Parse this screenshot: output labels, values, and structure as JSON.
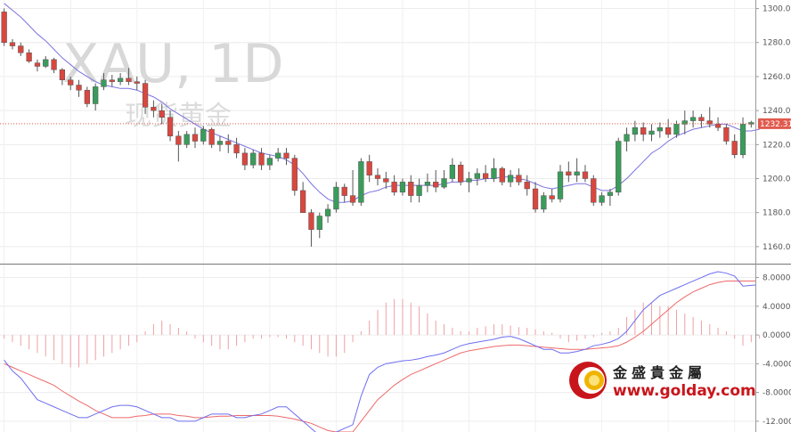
{
  "watermark": {
    "symbol": "XAU, 1D",
    "name": "现货黄金"
  },
  "logo": {
    "name": "金盛貴金屬",
    "url": "www.golday.com"
  },
  "current_price": {
    "label": "1232.31",
    "value": 1232.31
  },
  "colors": {
    "up": "#3a9c5b",
    "down": "#d9473f",
    "ma": "#7a73e0",
    "macd": "#6d6df0",
    "signal": "#ee6a6a",
    "price_line": "#e05a4e"
  },
  "chart_data": [
    {
      "type": "candlestick",
      "ylim": [
        1150,
        1305
      ],
      "yticks": [
        1160,
        1180,
        1200,
        1220,
        1240,
        1260,
        1280,
        1300
      ],
      "ytick_labels": [
        "1160.00",
        "1180.00",
        "1200.00",
        "1220.00",
        "1240.00",
        "1260.00",
        "1280.00",
        "1300.00"
      ],
      "candles": [
        [
          1298,
          1300,
          1278,
          1280
        ],
        [
          1280,
          1282,
          1276,
          1278
        ],
        [
          1278,
          1280,
          1272,
          1274
        ],
        [
          1274,
          1276,
          1268,
          1269
        ],
        [
          1268,
          1270,
          1263,
          1266
        ],
        [
          1266,
          1272,
          1265,
          1270
        ],
        [
          1270,
          1271,
          1262,
          1264
        ],
        [
          1264,
          1265,
          1255,
          1258
        ],
        [
          1258,
          1260,
          1252,
          1255
        ],
        [
          1255,
          1258,
          1248,
          1252
        ],
        [
          1252,
          1254,
          1242,
          1244
        ],
        [
          1244,
          1256,
          1240,
          1254
        ],
        [
          1254,
          1262,
          1252,
          1258
        ],
        [
          1258,
          1261,
          1254,
          1257
        ],
        [
          1257,
          1262,
          1255,
          1259
        ],
        [
          1259,
          1265,
          1255,
          1257
        ],
        [
          1257,
          1260,
          1252,
          1256
        ],
        [
          1256,
          1258,
          1238,
          1242
        ],
        [
          1242,
          1246,
          1236,
          1240
        ],
        [
          1240,
          1244,
          1232,
          1236
        ],
        [
          1236,
          1240,
          1222,
          1225
        ],
        [
          1225,
          1228,
          1210,
          1220
        ],
        [
          1220,
          1228,
          1218,
          1226
        ],
        [
          1226,
          1230,
          1218,
          1222
        ],
        [
          1222,
          1231,
          1220,
          1229
        ],
        [
          1229,
          1230,
          1218,
          1220
        ],
        [
          1220,
          1225,
          1216,
          1222
        ],
        [
          1222,
          1226,
          1215,
          1220
        ],
        [
          1220,
          1224,
          1212,
          1215
        ],
        [
          1215,
          1218,
          1205,
          1208
        ],
        [
          1208,
          1217,
          1206,
          1215
        ],
        [
          1215,
          1218,
          1205,
          1208
        ],
        [
          1208,
          1214,
          1205,
          1212
        ],
        [
          1212,
          1218,
          1210,
          1215
        ],
        [
          1215,
          1218,
          1208,
          1212
        ],
        [
          1212,
          1214,
          1190,
          1193
        ],
        [
          1193,
          1198,
          1180,
          1180
        ],
        [
          1180,
          1182,
          1160,
          1170
        ],
        [
          1170,
          1180,
          1165,
          1178
        ],
        [
          1178,
          1185,
          1174,
          1182
        ],
        [
          1182,
          1198,
          1180,
          1195
        ],
        [
          1195,
          1197,
          1186,
          1190
        ],
        [
          1190,
          1205,
          1184,
          1186
        ],
        [
          1186,
          1212,
          1184,
          1210
        ],
        [
          1210,
          1214,
          1198,
          1202
        ],
        [
          1202,
          1206,
          1196,
          1200
        ],
        [
          1200,
          1204,
          1194,
          1198
        ],
        [
          1198,
          1202,
          1190,
          1192
        ],
        [
          1192,
          1200,
          1190,
          1198
        ],
        [
          1198,
          1202,
          1186,
          1190
        ],
        [
          1190,
          1200,
          1186,
          1196
        ],
        [
          1196,
          1203,
          1192,
          1198
        ],
        [
          1198,
          1205,
          1192,
          1195
        ],
        [
          1195,
          1205,
          1194,
          1200
        ],
        [
          1200,
          1212,
          1198,
          1208
        ],
        [
          1208,
          1210,
          1196,
          1198
        ],
        [
          1198,
          1204,
          1192,
          1200
        ],
        [
          1200,
          1206,
          1196,
          1203
        ],
        [
          1203,
          1208,
          1198,
          1200
        ],
        [
          1200,
          1212,
          1198,
          1206
        ],
        [
          1206,
          1207,
          1196,
          1198
        ],
        [
          1198,
          1205,
          1195,
          1202
        ],
        [
          1202,
          1206,
          1196,
          1198
        ],
        [
          1198,
          1202,
          1190,
          1194
        ],
        [
          1194,
          1198,
          1180,
          1182
        ],
        [
          1182,
          1192,
          1180,
          1190
        ],
        [
          1190,
          1194,
          1186,
          1188
        ],
        [
          1188,
          1208,
          1186,
          1204
        ],
        [
          1204,
          1210,
          1198,
          1202
        ],
        [
          1202,
          1212,
          1198,
          1204
        ],
        [
          1204,
          1208,
          1198,
          1200
        ],
        [
          1200,
          1202,
          1184,
          1186
        ],
        [
          1186,
          1192,
          1184,
          1190
        ],
        [
          1190,
          1194,
          1184,
          1192
        ],
        [
          1192,
          1224,
          1190,
          1222
        ],
        [
          1222,
          1230,
          1216,
          1226
        ],
        [
          1226,
          1234,
          1222,
          1230
        ],
        [
          1230,
          1233,
          1222,
          1226
        ],
        [
          1226,
          1232,
          1222,
          1228
        ],
        [
          1228,
          1233,
          1224,
          1230
        ],
        [
          1230,
          1235,
          1224,
          1226
        ],
        [
          1226,
          1234,
          1224,
          1232
        ],
        [
          1232,
          1240,
          1226,
          1234
        ],
        [
          1234,
          1240,
          1230,
          1236
        ],
        [
          1236,
          1238,
          1230,
          1234
        ],
        [
          1234,
          1242,
          1230,
          1232
        ],
        [
          1232,
          1236,
          1228,
          1230
        ],
        [
          1230,
          1232,
          1220,
          1222
        ],
        [
          1222,
          1226,
          1212,
          1214
        ],
        [
          1214,
          1236,
          1212,
          1232
        ],
        [
          1232,
          1234,
          1230,
          1233
        ]
      ],
      "ma": [
        1303,
        1299,
        1295,
        1290,
        1285,
        1281,
        1276,
        1271,
        1267,
        1263,
        1260,
        1257,
        1255,
        1254,
        1253,
        1253,
        1252,
        1250,
        1248,
        1245,
        1241,
        1238,
        1235,
        1232,
        1229,
        1227,
        1225,
        1223,
        1221,
        1219,
        1217,
        1215,
        1214,
        1213,
        1211,
        1208,
        1203,
        1197,
        1192,
        1188,
        1186,
        1186,
        1187,
        1190,
        1192,
        1193,
        1195,
        1196,
        1196,
        1196,
        1196,
        1196,
        1196,
        1197,
        1198,
        1198,
        1199,
        1199,
        1200,
        1200,
        1201,
        1201,
        1200,
        1199,
        1197,
        1195,
        1194,
        1195,
        1196,
        1197,
        1197,
        1195,
        1193,
        1193,
        1196,
        1200,
        1205,
        1210,
        1215,
        1218,
        1222,
        1225,
        1227,
        1229,
        1230,
        1231,
        1232,
        1232,
        1230,
        1228,
        1228,
        1229
      ]
    },
    {
      "type": "macd",
      "ylim": [
        -13.5,
        9.8
      ],
      "yticks": [
        8,
        4,
        0,
        -4,
        -8,
        -12
      ],
      "ytick_labels": [
        "8.0000",
        "4.0000",
        "0.0000",
        "-4.0000",
        "-8.0000",
        "-12.0000"
      ],
      "hist": [
        -0.5,
        -1,
        -1.5,
        -2,
        -2.5,
        -3,
        -3.5,
        -4,
        -4.5,
        -4.5,
        -4,
        -3.5,
        -3,
        -2.5,
        -2,
        -1.5,
        -1,
        0.5,
        1.5,
        2,
        1.5,
        1,
        0.5,
        -0.5,
        -1,
        -1.5,
        -2,
        -2,
        -1.5,
        -1,
        -0.5,
        -0.5,
        -0.3,
        -0.3,
        -0.5,
        -1,
        -1.5,
        -2,
        -2.5,
        -3,
        -3,
        -2.5,
        -1,
        0.5,
        2,
        3.5,
        4.5,
        5,
        5,
        4.5,
        4,
        3,
        2,
        1.5,
        1,
        0.5,
        0.5,
        1,
        1.2,
        1.5,
        1.5,
        1.3,
        1.1,
        1,
        0.8,
        0.5,
        0.3,
        -0.5,
        -1,
        -0.8,
        -0.5,
        -0.3,
        0.3,
        0.5,
        1,
        2.5,
        3.5,
        4.5,
        4.5,
        4,
        4,
        3.5,
        3,
        2.5,
        2,
        1.5,
        1,
        0.5,
        -0.5,
        -1.5,
        -1,
        -0.5
      ],
      "macd": [
        -3.5,
        -5,
        -6,
        -7.5,
        -9,
        -9.5,
        -10,
        -10.5,
        -11,
        -11.5,
        -11.5,
        -11,
        -10.5,
        -10,
        -9.8,
        -9.8,
        -10,
        -10.5,
        -11,
        -11.5,
        -11.5,
        -12,
        -12,
        -12,
        -11.5,
        -11,
        -11,
        -11,
        -11.5,
        -11.5,
        -11.2,
        -11,
        -10.5,
        -10,
        -10,
        -11,
        -12,
        -13,
        -14,
        -14.5,
        -13.5,
        -13,
        -12.5,
        -8.5,
        -5.5,
        -4.5,
        -4,
        -3.8,
        -3.6,
        -3.5,
        -3.3,
        -3,
        -2.8,
        -2.5,
        -2,
        -1.5,
        -1.2,
        -1,
        -0.8,
        -0.6,
        -0.3,
        -0.2,
        -0.5,
        -1,
        -1.5,
        -2,
        -2,
        -2.5,
        -2.5,
        -2.3,
        -2,
        -1.5,
        -1.3,
        -1,
        -0.5,
        0.5,
        2,
        3.5,
        4.5,
        5.5,
        6,
        6.5,
        7,
        7.5,
        8,
        8.5,
        8.8,
        8.6,
        8.2,
        6.8,
        6.9,
        7
      ]
    },
    {
      "type": "signal",
      "values": [
        -4,
        -4.5,
        -5,
        -5.5,
        -6,
        -6.5,
        -7,
        -7.8,
        -8.5,
        -9.2,
        -9.8,
        -10.5,
        -11,
        -11.5,
        -11.5,
        -11.5,
        -11.3,
        -11.2,
        -11,
        -11,
        -11,
        -11.2,
        -11.3,
        -11.5,
        -11.5,
        -11.4,
        -11.3,
        -11.3,
        -11.2,
        -11.2,
        -11.2,
        -11.2,
        -11.2,
        -11.3,
        -11.5,
        -11.7,
        -12,
        -12.3,
        -12.8,
        -13.3,
        -13.5,
        -13.5,
        -13.5,
        -12,
        -10.5,
        -9,
        -8,
        -7,
        -6.2,
        -5.5,
        -5,
        -4.5,
        -4,
        -3.5,
        -3,
        -2.5,
        -2.2,
        -2,
        -1.8,
        -1.6,
        -1.5,
        -1.4,
        -1.4,
        -1.5,
        -1.6,
        -1.7,
        -1.8,
        -1.9,
        -2,
        -2,
        -2,
        -1.9,
        -1.8,
        -1.7,
        -1.5,
        -1,
        -0.3,
        0.5,
        1.5,
        2.5,
        3.5,
        4.5,
        5.3,
        6,
        6.5,
        7,
        7.3,
        7.5,
        7.5,
        7.5,
        7.5,
        7.5
      ]
    }
  ]
}
